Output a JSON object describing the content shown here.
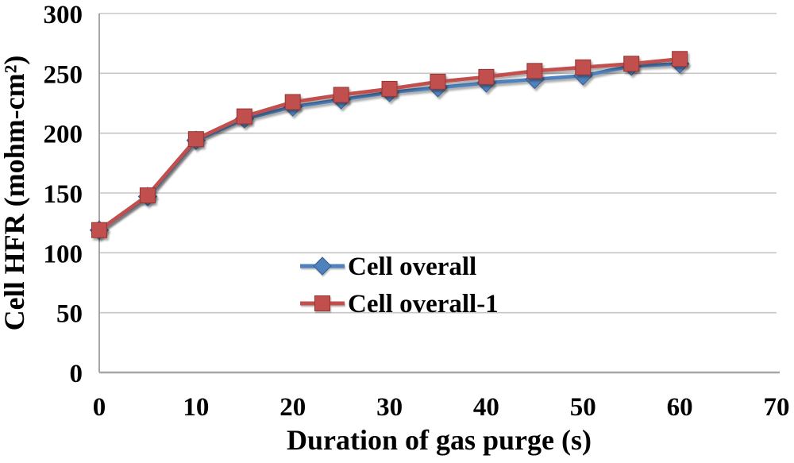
{
  "chart_data": {
    "type": "line",
    "title": "",
    "xlabel": "Duration of gas purge (s)",
    "ylabel": "Cell HFR (mohm-cm²)",
    "xlim": [
      0,
      70
    ],
    "ylim": [
      0,
      300
    ],
    "x_ticks": [
      0,
      10,
      20,
      30,
      40,
      50,
      60,
      70
    ],
    "y_ticks": [
      0,
      50,
      100,
      150,
      200,
      250,
      300
    ],
    "grid": "horizontal",
    "legend_position": "center-inside",
    "x": [
      0,
      5,
      10,
      15,
      20,
      25,
      30,
      35,
      40,
      45,
      50,
      55,
      60
    ],
    "series": [
      {
        "name": "Cell overall",
        "marker": "diamond",
        "color": "#4F81BD",
        "edge_color": "#385D8A",
        "values": [
          119,
          147,
          194,
          212,
          222,
          228,
          234,
          238,
          242,
          245,
          248,
          256,
          258
        ]
      },
      {
        "name": "Cell overall-1",
        "marker": "square",
        "color": "#C0504D",
        "edge_color": "#943634",
        "values": [
          119,
          148,
          195,
          214,
          226,
          232,
          237,
          243,
          247,
          252,
          255,
          258,
          262
        ]
      }
    ],
    "colors": {
      "background": "#FFFFFF",
      "gridline": "#C6C6C6",
      "axis_line": "#A6A6A6",
      "text": "#000000"
    }
  }
}
